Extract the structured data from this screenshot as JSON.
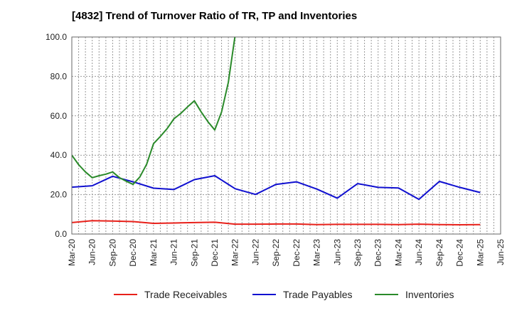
{
  "chart_data": {
    "type": "line",
    "title": "[4832]  Trend of Turnover Ratio of TR, TP and Inventories",
    "xlabel": "",
    "ylabel": "",
    "ylim": [
      0,
      100
    ],
    "yticks": [
      "0.0",
      "20.0",
      "40.0",
      "60.0",
      "80.0",
      "100.0"
    ],
    "xtick_labels": [
      "Mar-20",
      "Jun-20",
      "Sep-20",
      "Dec-20",
      "Mar-21",
      "Jun-21",
      "Sep-21",
      "Dec-21",
      "Mar-22",
      "Jun-22",
      "Sep-22",
      "Dec-22",
      "Mar-23",
      "Jun-23",
      "Sep-23",
      "Dec-23",
      "Mar-24",
      "Jun-24",
      "Sep-24",
      "Dec-24",
      "Mar-25",
      "Jun-25"
    ],
    "grid": true,
    "legend_position": "bottom",
    "x": [
      "Mar-20",
      "Apr-20",
      "May-20",
      "Jun-20",
      "Jul-20",
      "Aug-20",
      "Sep-20",
      "Oct-20",
      "Nov-20",
      "Dec-20",
      "Jan-21",
      "Feb-21",
      "Mar-21",
      "Apr-21",
      "May-21",
      "Jun-21",
      "Jul-21",
      "Aug-21",
      "Sep-21",
      "Oct-21",
      "Nov-21",
      "Dec-21",
      "Jan-22",
      "Feb-22",
      "Mar-22",
      "Jun-22",
      "Sep-22",
      "Dec-22",
      "Mar-23",
      "Jun-23",
      "Sep-23",
      "Dec-23",
      "Mar-24",
      "Jun-24",
      "Sep-24",
      "Dec-24",
      "Mar-25"
    ],
    "series": [
      {
        "name": "Trade Receivables",
        "color": "#e8201a",
        "points": [
          [
            "Mar-20",
            5.8
          ],
          [
            "Jun-20",
            6.8
          ],
          [
            "Sep-20",
            6.6
          ],
          [
            "Dec-20",
            6.3
          ],
          [
            "Mar-21",
            5.4
          ],
          [
            "Jun-21",
            5.6
          ],
          [
            "Sep-21",
            5.8
          ],
          [
            "Dec-21",
            6.0
          ],
          [
            "Mar-22",
            5.0
          ],
          [
            "Jun-22",
            5.0
          ],
          [
            "Sep-22",
            5.1
          ],
          [
            "Dec-22",
            5.1
          ],
          [
            "Mar-23",
            4.8
          ],
          [
            "Jun-23",
            4.9
          ],
          [
            "Sep-23",
            4.9
          ],
          [
            "Dec-23",
            4.9
          ],
          [
            "Mar-24",
            4.8
          ],
          [
            "Jun-24",
            5.0
          ],
          [
            "Sep-24",
            4.8
          ],
          [
            "Dec-24",
            4.7
          ],
          [
            "Mar-25",
            4.8
          ]
        ]
      },
      {
        "name": "Trade Payables",
        "color": "#1010d0",
        "points": [
          [
            "Mar-20",
            23.8
          ],
          [
            "Jun-20",
            24.5
          ],
          [
            "Sep-20",
            29.3
          ],
          [
            "Dec-20",
            26.5
          ],
          [
            "Mar-21",
            23.3
          ],
          [
            "Jun-21",
            22.6
          ],
          [
            "Sep-21",
            27.6
          ],
          [
            "Dec-21",
            29.6
          ],
          [
            "Mar-22",
            23.0
          ],
          [
            "Jun-22",
            20.1
          ],
          [
            "Sep-22",
            25.2
          ],
          [
            "Dec-22",
            26.5
          ],
          [
            "Mar-23",
            22.8
          ],
          [
            "Jun-23",
            18.2
          ],
          [
            "Sep-23",
            25.6
          ],
          [
            "Dec-23",
            23.7
          ],
          [
            "Mar-24",
            23.4
          ],
          [
            "Jun-24",
            17.6
          ],
          [
            "Sep-24",
            26.7
          ],
          [
            "Dec-24",
            23.7
          ],
          [
            "Mar-25",
            21.1
          ]
        ]
      },
      {
        "name": "Inventories",
        "color": "#2a8a2a",
        "points": [
          [
            "Mar-20",
            40.0
          ],
          [
            "Apr-20",
            35.2
          ],
          [
            "May-20",
            31.5
          ],
          [
            "Jun-20",
            28.6
          ],
          [
            "Jul-20",
            29.6
          ],
          [
            "Aug-20",
            30.4
          ],
          [
            "Sep-20",
            31.5
          ],
          [
            "Oct-20",
            28.6
          ],
          [
            "Nov-20",
            26.8
          ],
          [
            "Dec-20",
            25.2
          ],
          [
            "Jan-21",
            29.0
          ],
          [
            "Feb-21",
            35.5
          ],
          [
            "Mar-21",
            45.9
          ],
          [
            "Apr-21",
            49.5
          ],
          [
            "May-21",
            53.5
          ],
          [
            "Jun-21",
            58.5
          ],
          [
            "Jul-21",
            61.2
          ],
          [
            "Aug-21",
            64.5
          ],
          [
            "Sep-21",
            67.6
          ],
          [
            "Oct-21",
            62.0
          ],
          [
            "Nov-21",
            57.0
          ],
          [
            "Dec-21",
            52.8
          ],
          [
            "Jan-22",
            62.0
          ],
          [
            "Feb-22",
            77.0
          ],
          [
            "Mar-22",
            101.0
          ]
        ]
      }
    ]
  }
}
